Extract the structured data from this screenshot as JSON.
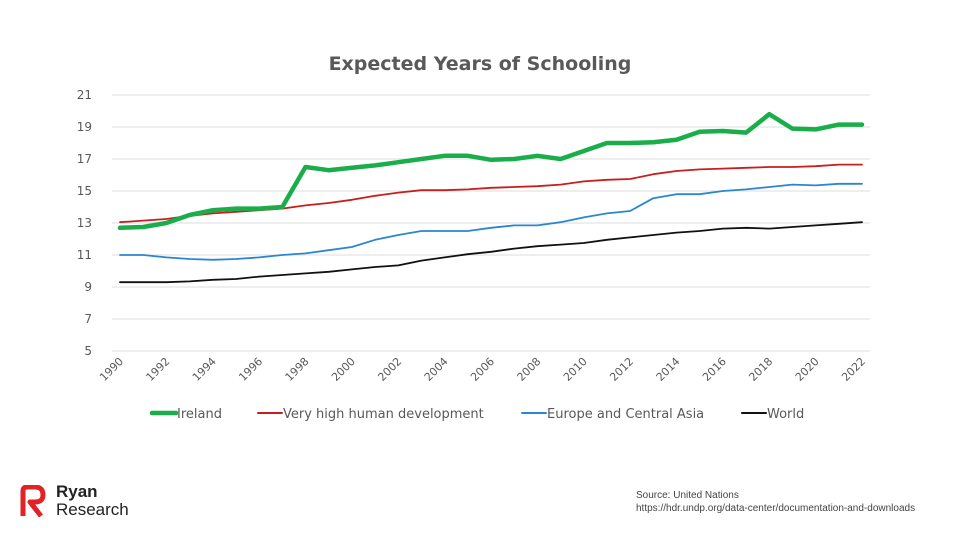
{
  "chart_data": {
    "type": "line",
    "title": "Expected Years of Schooling",
    "xlabel": "",
    "ylabel": "",
    "ylim": [
      5,
      21
    ],
    "yticks": [
      "5",
      "7",
      "9",
      "11",
      "13",
      "15",
      "17",
      "19",
      "21"
    ],
    "xlim": [
      1990,
      2022
    ],
    "xticks": [
      "1990",
      "1992",
      "1994",
      "1996",
      "1998",
      "2000",
      "2002",
      "2004",
      "2006",
      "2008",
      "2010",
      "2012",
      "2014",
      "2016",
      "2018",
      "2020",
      "2022"
    ],
    "grid": true,
    "legend_position": "bottom",
    "x": [
      1990,
      1991,
      1992,
      1993,
      1994,
      1995,
      1996,
      1997,
      1998,
      1999,
      2000,
      2001,
      2002,
      2003,
      2004,
      2005,
      2006,
      2007,
      2008,
      2009,
      2010,
      2011,
      2012,
      2013,
      2014,
      2015,
      2016,
      2017,
      2018,
      2019,
      2020,
      2021,
      2022
    ],
    "series": [
      {
        "name": "Ireland",
        "color": "#1aae4a",
        "values": [
          12.7,
          12.75,
          13.0,
          13.5,
          13.8,
          13.9,
          13.9,
          14.0,
          16.5,
          16.3,
          16.45,
          16.6,
          16.8,
          17.0,
          17.2,
          17.2,
          16.95,
          17.0,
          17.2,
          17.0,
          17.5,
          18.0,
          18.0,
          18.05,
          18.2,
          18.7,
          18.75,
          18.65,
          19.8,
          18.9,
          18.85,
          19.15,
          19.15
        ]
      },
      {
        "name": "Very high human development",
        "color": "#c81e1e",
        "values": [
          13.05,
          13.15,
          13.25,
          13.45,
          13.6,
          13.7,
          13.8,
          13.9,
          14.1,
          14.25,
          14.45,
          14.7,
          14.9,
          15.05,
          15.05,
          15.1,
          15.2,
          15.25,
          15.3,
          15.4,
          15.6,
          15.7,
          15.75,
          16.05,
          16.25,
          16.35,
          16.4,
          16.45,
          16.5,
          16.5,
          16.55,
          16.65,
          16.65
        ]
      },
      {
        "name": "Europe and Central Asia",
        "color": "#2a86d2",
        "values": [
          11.0,
          11.0,
          10.85,
          10.75,
          10.7,
          10.75,
          10.85,
          11.0,
          11.1,
          11.3,
          11.5,
          11.95,
          12.25,
          12.5,
          12.5,
          12.5,
          12.7,
          12.85,
          12.85,
          13.05,
          13.35,
          13.6,
          13.75,
          14.55,
          14.8,
          14.8,
          15.0,
          15.1,
          15.25,
          15.4,
          15.35,
          15.45,
          15.45
        ]
      },
      {
        "name": "World",
        "color": "#111111",
        "values": [
          9.3,
          9.3,
          9.3,
          9.35,
          9.45,
          9.5,
          9.65,
          9.75,
          9.85,
          9.95,
          10.1,
          10.25,
          10.35,
          10.65,
          10.85,
          11.05,
          11.2,
          11.4,
          11.55,
          11.65,
          11.75,
          11.95,
          12.1,
          12.25,
          12.4,
          12.5,
          12.65,
          12.7,
          12.65,
          12.75,
          12.85,
          12.95,
          13.05
        ]
      }
    ]
  },
  "branding": {
    "logo_line1": "Ryan",
    "logo_line2": "Research",
    "logo_color": "#e32226"
  },
  "source": {
    "line1": "Source: United Nations",
    "line2": "https://hdr.undp.org/data-center/documentation-and-downloads"
  }
}
